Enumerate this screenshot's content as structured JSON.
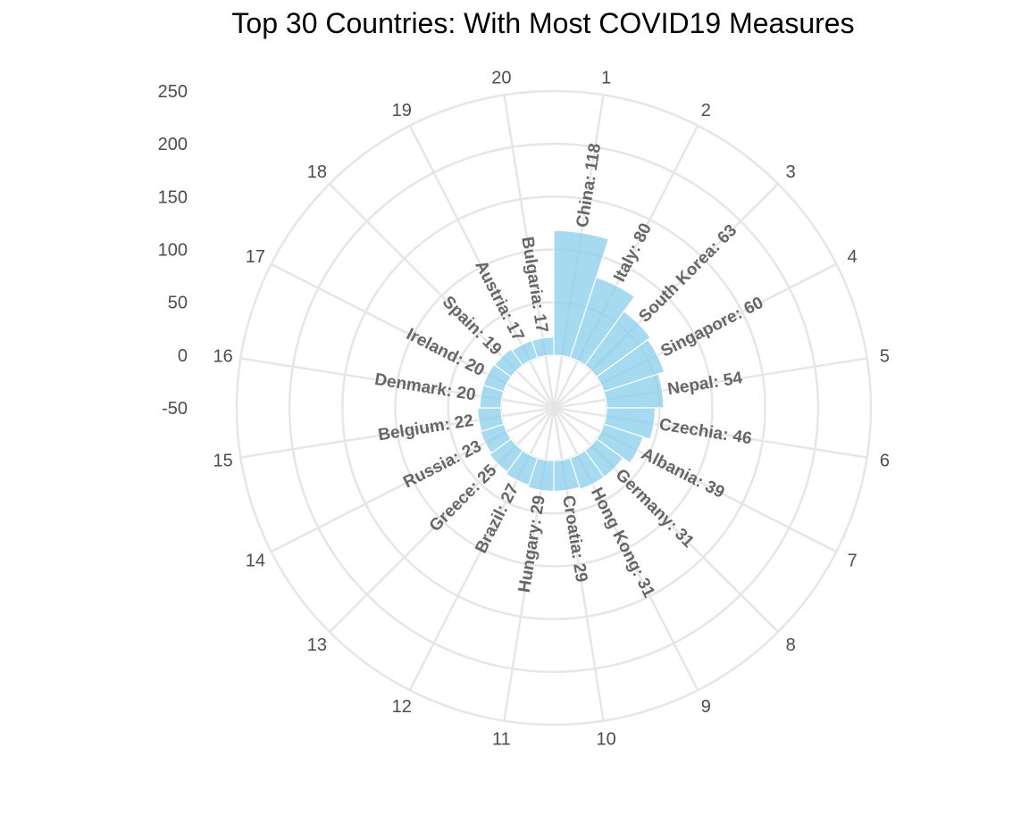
{
  "chart_data": {
    "type": "bar",
    "coordinate_system": "polar",
    "title": "Top 30 Countries: With Most COVID19 Measures",
    "color": "#87ceeb",
    "grid": true,
    "ylim": [
      -50,
      250
    ],
    "y_ticks": [
      "250",
      "200",
      "150",
      "100",
      "50",
      "0",
      "-50"
    ],
    "x_tick_labels": [
      "1",
      "2",
      "3",
      "4",
      "5",
      "6",
      "7",
      "8",
      "9",
      "10",
      "11",
      "12",
      "13",
      "14",
      "15",
      "16",
      "17",
      "18",
      "19",
      "20"
    ],
    "categories": [
      "China",
      "Italy",
      "South Korea",
      "Singapore",
      "Nepal",
      "Czechia",
      "Albania",
      "Germany",
      "Hong Kong",
      "Croatia",
      "Hungary",
      "Brazil",
      "Greece",
      "Russia",
      "Belgium",
      "Denmark",
      "Ireland",
      "Spain",
      "Austria",
      "Bulgaria"
    ],
    "values": [
      118,
      80,
      63,
      60,
      54,
      46,
      39,
      31,
      31,
      29,
      29,
      27,
      25,
      23,
      22,
      20,
      20,
      19,
      17,
      17
    ],
    "labels": [
      "China: 118",
      "Italy: 80",
      "South Korea: 63",
      "Singapore: 60",
      "Nepal: 54",
      "Czechia: 46",
      "Albania: 39",
      "Germany: 31",
      "Hong Kong: 31",
      "Croatia: 29",
      "Hungary: 29",
      "Brazil: 27",
      "Greece: 25",
      "Russia: 23",
      "Belgium: 22",
      "Denmark: 20",
      "Ireland: 20",
      "Spain: 19",
      "Austria: 17",
      "Bulgaria: 17"
    ]
  }
}
